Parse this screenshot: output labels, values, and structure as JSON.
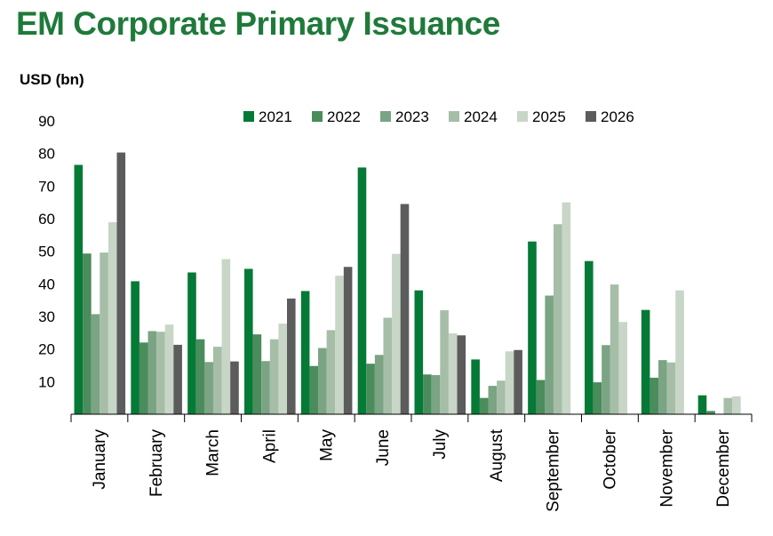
{
  "title": "EM Corporate Primary Issuance",
  "chart_data": {
    "type": "bar",
    "title": "EM Corporate Primary Issuance",
    "ylabel": "USD (bn)",
    "xlabel": "",
    "ylim": [
      0,
      90
    ],
    "yticks": [
      10,
      20,
      30,
      40,
      50,
      60,
      70,
      80,
      90
    ],
    "categories": [
      "January",
      "February",
      "March",
      "April",
      "May",
      "June",
      "July",
      "August",
      "September",
      "October",
      "November",
      "December"
    ],
    "legend_position": "top",
    "grid": false,
    "series": [
      {
        "name": "2021",
        "color": "#047a36",
        "values": [
          76.5,
          40.8,
          43.5,
          44.6,
          37.8,
          75.7,
          38.0,
          16.8,
          53.0,
          47.0,
          32.0,
          5.8
        ]
      },
      {
        "name": "2022",
        "color": "#4b8c5c",
        "values": [
          49.3,
          22.0,
          23.0,
          24.5,
          14.8,
          15.5,
          12.2,
          5.0,
          10.5,
          9.8,
          11.2,
          1.0
        ]
      },
      {
        "name": "2023",
        "color": "#7aa484",
        "values": [
          30.7,
          25.5,
          16.0,
          16.3,
          20.3,
          18.2,
          12.0,
          8.7,
          36.4,
          21.2,
          16.6,
          0
        ]
      },
      {
        "name": "2024",
        "color": "#a6bea8",
        "values": [
          49.6,
          25.3,
          20.7,
          23.0,
          25.8,
          29.6,
          31.9,
          10.3,
          58.3,
          39.8,
          15.9,
          5.0
        ]
      },
      {
        "name": "2025",
        "color": "#c7d6c6",
        "values": [
          58.9,
          27.5,
          47.6,
          27.8,
          42.5,
          49.2,
          24.8,
          19.3,
          65.0,
          28.3,
          38.0,
          5.5
        ]
      },
      {
        "name": "2026",
        "color": "#5c5c5c",
        "values": [
          80.3,
          21.3,
          16.2,
          35.5,
          45.2,
          64.5,
          24.2,
          19.7,
          null,
          null,
          null,
          null
        ]
      }
    ]
  }
}
